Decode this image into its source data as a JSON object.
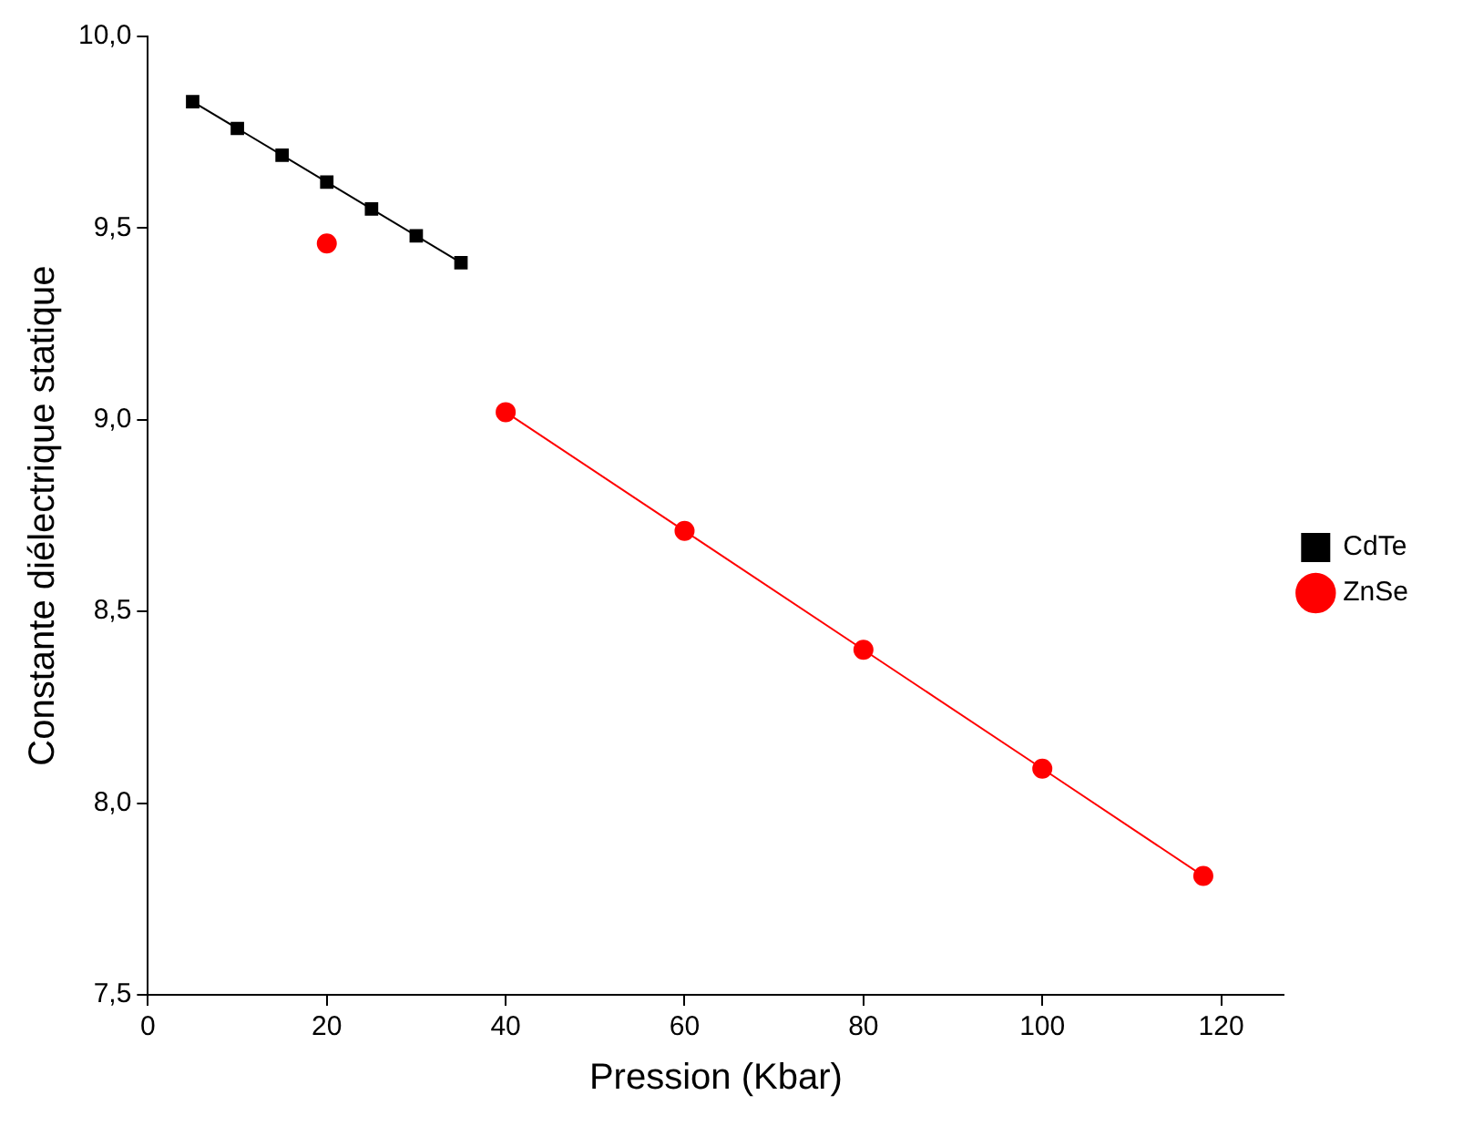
{
  "chart_data": {
    "type": "line",
    "xlabel": "Pression (Kbar)",
    "ylabel": "Constante diélectrique statique",
    "xlim": [
      0,
      127
    ],
    "xticks": [
      0,
      20,
      40,
      60,
      80,
      100,
      120
    ],
    "ylim": [
      7.5,
      10
    ],
    "yticks": [
      {
        "value": 7.5,
        "label": "7,5"
      },
      {
        "value": 8,
        "label": "8,0"
      },
      {
        "value": 8.5,
        "label": "8,5"
      },
      {
        "value": 9,
        "label": "9,0"
      },
      {
        "value": 9.5,
        "label": "9,5"
      },
      {
        "value": 10,
        "label": "10,0"
      }
    ],
    "grid": false,
    "legend": "right",
    "line_style": "solid",
    "series": [
      {
        "name": "CdTe",
        "color": "#000000",
        "marker": "square",
        "x": [
          5,
          10,
          15,
          20,
          25,
          30,
          35
        ],
        "values": [
          9.83,
          9.76,
          9.69,
          9.62,
          9.55,
          9.48,
          9.41
        ]
      },
      {
        "name": "ZnSe",
        "color": "#ff0000",
        "marker": "circle",
        "x": [
          20,
          30,
          40,
          60,
          80,
          100,
          118
        ],
        "values": [
          9.46,
          null,
          9.02,
          8.71,
          8.4,
          8.09,
          7.81
        ]
      }
    ]
  }
}
